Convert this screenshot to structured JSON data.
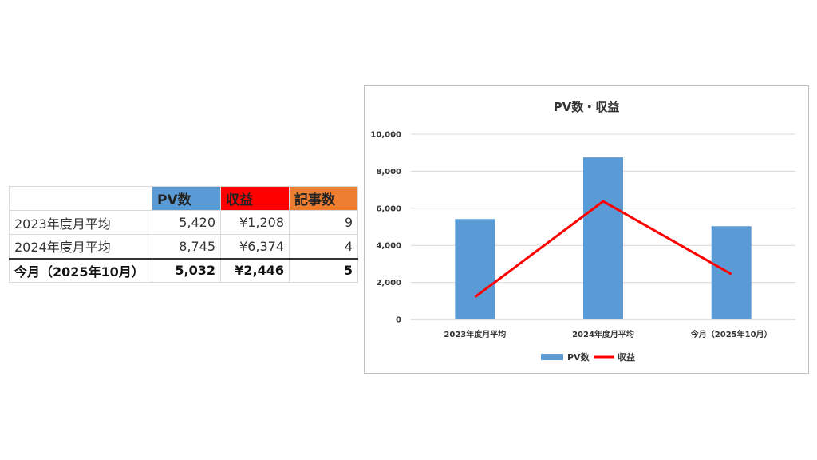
{
  "table": {
    "headers": [
      "",
      "PV数",
      "収益",
      "記事数"
    ],
    "header_colors": [
      "#ffffff",
      "#5b9bd5",
      "#ff0000",
      "#ed7d31"
    ],
    "rows": [
      {
        "label": "2023年度月平均",
        "pv": "5,420",
        "revenue": "¥1,208",
        "articles": "9"
      },
      {
        "label": "2024年度月平均",
        "pv": "8,745",
        "revenue": "¥6,374",
        "articles": "4"
      },
      {
        "label": "今月（2025年10月）",
        "pv": "5,032",
        "revenue": "¥2,446",
        "articles": "5"
      }
    ]
  },
  "chart_data": {
    "type": "bar",
    "title": "PV数・収益",
    "categories": [
      "2023年度月平均",
      "2024年度月平均",
      "今月（2025年10月）"
    ],
    "series": [
      {
        "name": "PV数",
        "type": "bar",
        "color": "#5b9bd5",
        "values": [
          5420,
          8745,
          5032
        ]
      },
      {
        "name": "収益",
        "type": "line",
        "color": "#ff0000",
        "values": [
          1208,
          6374,
          2446
        ]
      }
    ],
    "ylim": [
      0,
      10000
    ],
    "yticks": [
      "0",
      "2,000",
      "4,000",
      "6,000",
      "8,000",
      "10,000"
    ],
    "ytick_values": [
      0,
      2000,
      4000,
      6000,
      8000,
      10000
    ],
    "grid": true,
    "legend": "bottom"
  }
}
